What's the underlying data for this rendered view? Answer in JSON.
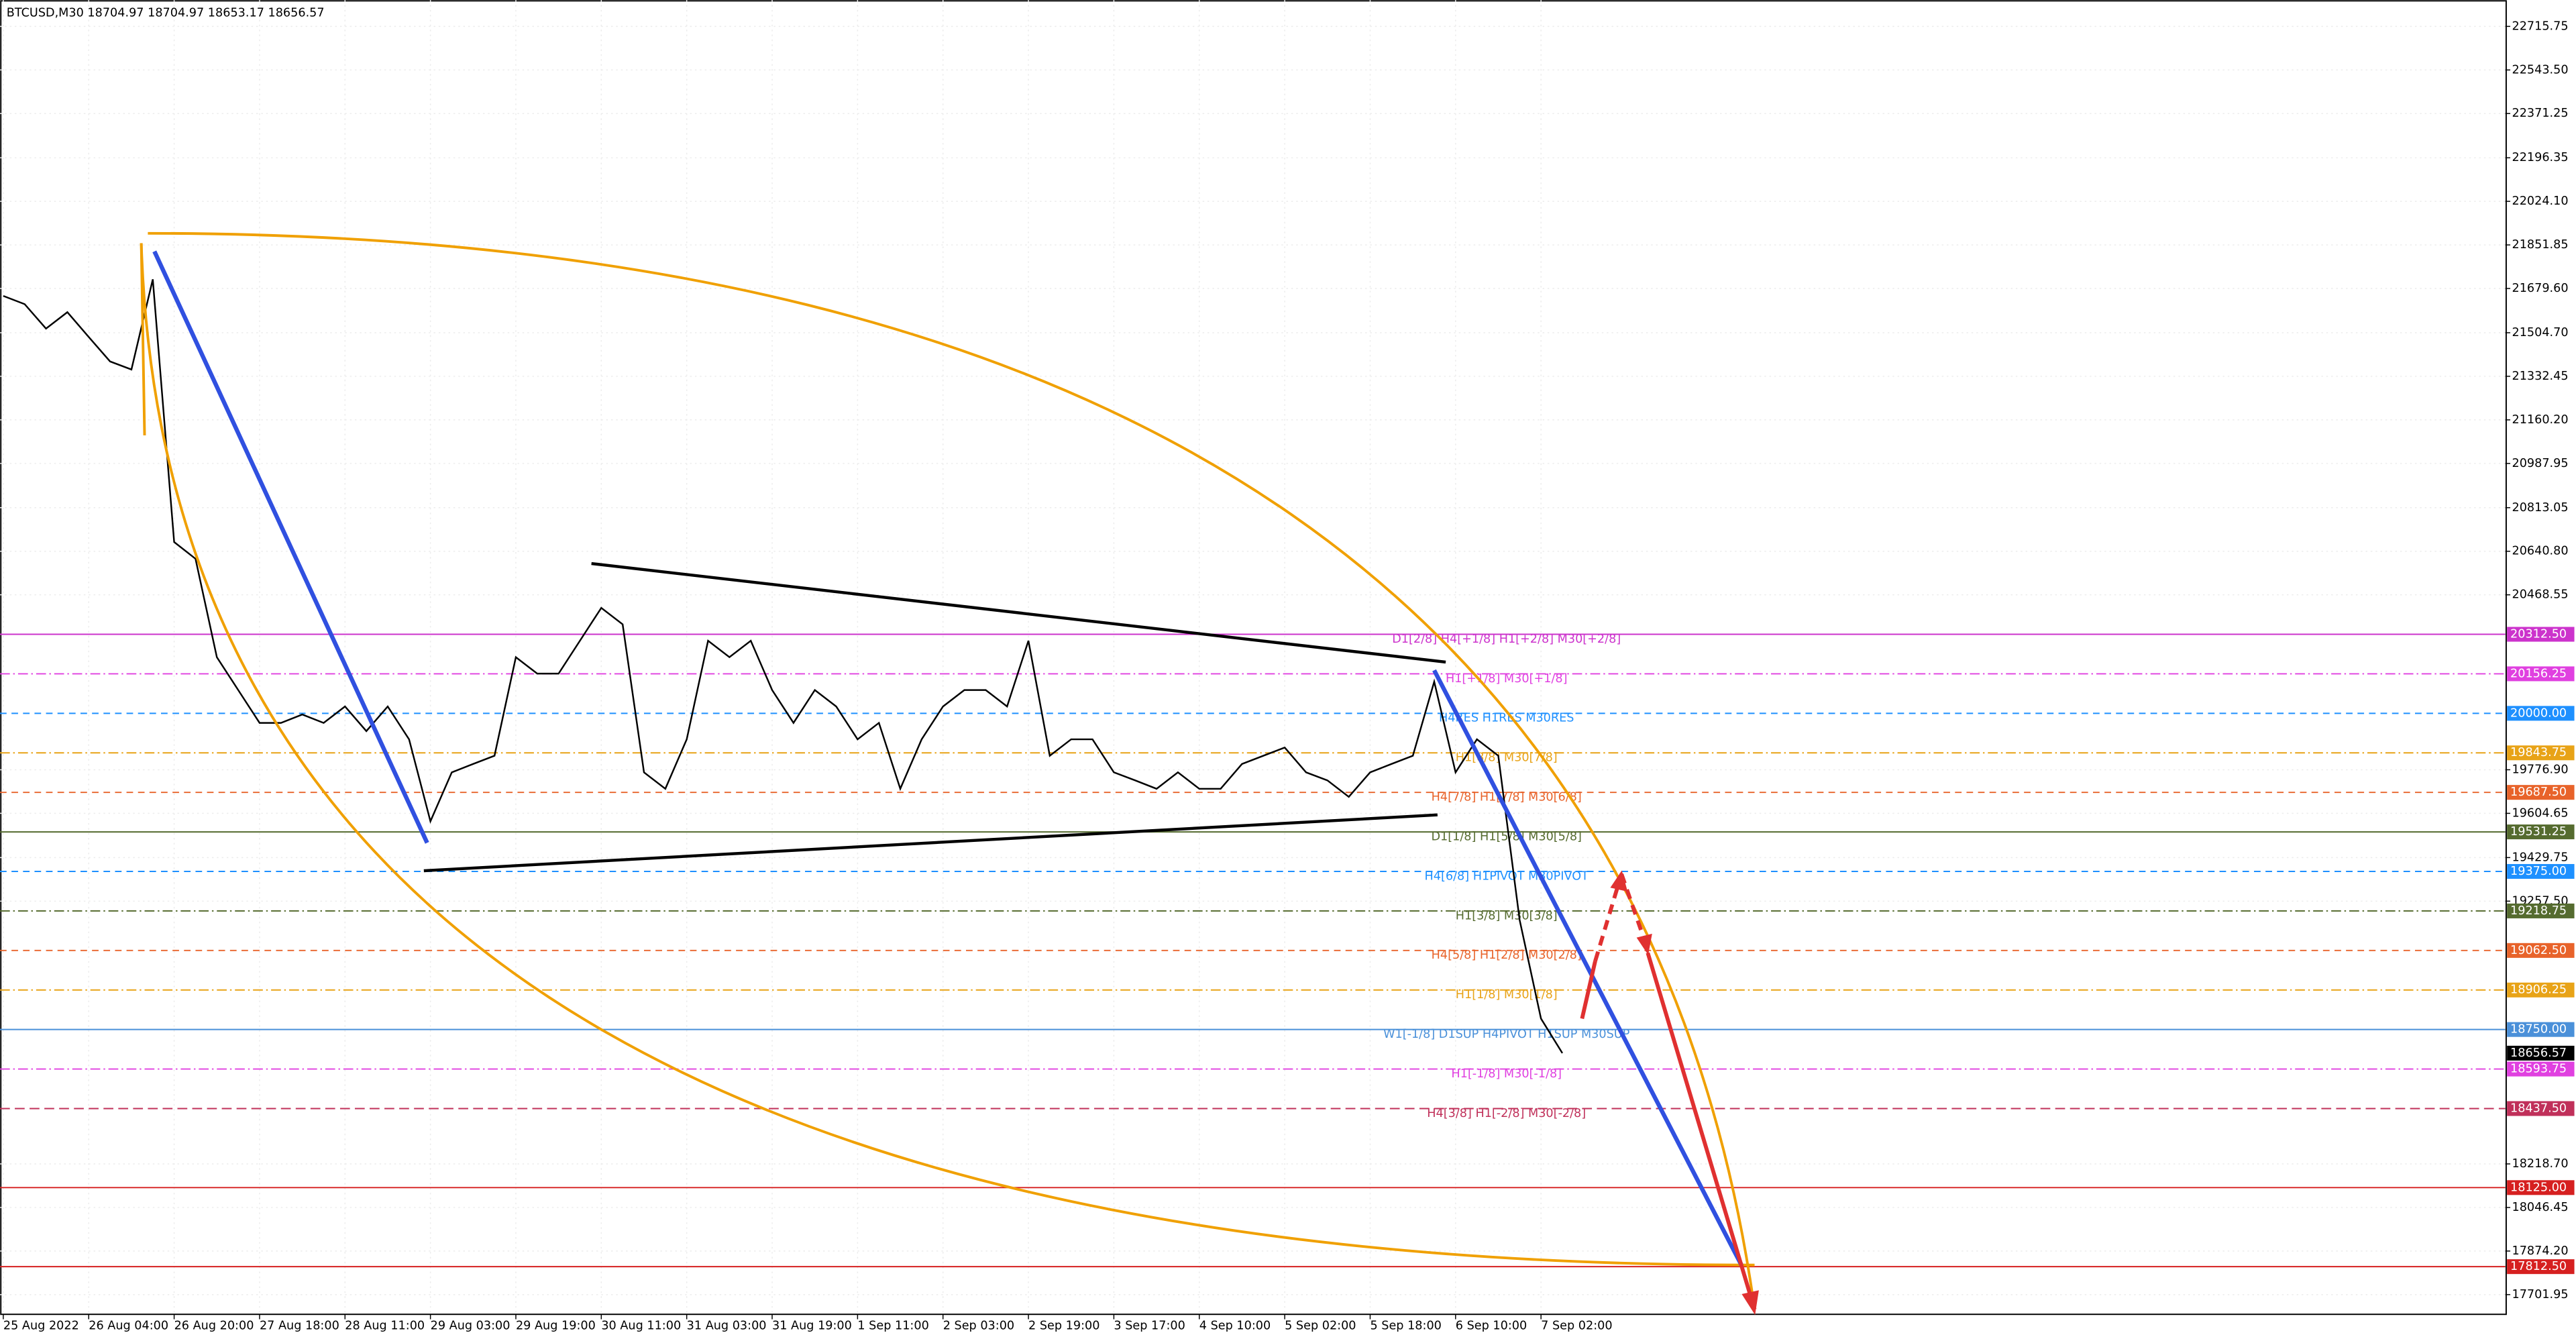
{
  "chart_data": {
    "type": "line",
    "title": "BTCUSD,M30  18704.97 18704.97 18653.17 18656.57",
    "categories": [
      "25 Aug 2022",
      null,
      null,
      null,
      "26 Aug 04:00",
      null,
      null,
      null,
      "26 Aug 20:00",
      null,
      null,
      null,
      "27 Aug 18:00",
      null,
      null,
      null,
      "28 Aug 11:00",
      null,
      null,
      null,
      "29 Aug 03:00",
      null,
      null,
      null,
      "29 Aug 19:00",
      null,
      null,
      null,
      "30 Aug 11:00",
      null,
      null,
      null,
      "31 Aug 03:00",
      null,
      null,
      null,
      "31 Aug 19:00",
      null,
      null,
      null,
      "1 Sep 11:00",
      null,
      null,
      null,
      "2 Sep 03:00",
      null,
      null,
      null,
      "2 Sep 19:00",
      null,
      null,
      null,
      "3 Sep 17:00",
      null,
      null,
      null,
      "4 Sep 10:00",
      null,
      null,
      null,
      "5 Sep 02:00",
      null,
      null,
      null,
      "5 Sep 18:00",
      null,
      null,
      null,
      "6 Sep 10:00",
      null,
      null,
      null,
      "7 Sep 02:00",
      null
    ],
    "series": [
      {
        "name": "BTCUSD",
        "color": "#000000",
        "values": [
          21650,
          21618,
          21521,
          21586,
          21488,
          21391,
          21359,
          21716,
          20677,
          20611,
          20222,
          20092,
          19962,
          19962,
          19995,
          19962,
          20027,
          19930,
          20027,
          19897,
          19573,
          19767,
          19800,
          19832,
          20222,
          20157,
          20157,
          20287,
          20417,
          20352,
          19767,
          19702,
          19897,
          20287,
          20222,
          20287,
          20092,
          19962,
          20092,
          20027,
          19897,
          19962,
          19702,
          19897,
          20027,
          20092,
          20092,
          20027,
          20287,
          19832,
          19897,
          19897,
          19767,
          19735,
          19702,
          19767,
          19702,
          19702,
          19800,
          19832,
          19865,
          19767,
          19735,
          19670,
          19767,
          19800,
          19832,
          20125,
          19767,
          19897,
          19832,
          19183,
          18793,
          18656.57
        ]
      }
    ],
    "ylim": [
      17624,
      22820
    ],
    "yticks": [
      {
        "value": 22715.75,
        "label": "22715.75"
      },
      {
        "value": 22543.5,
        "label": "22543.50"
      },
      {
        "value": 22371.25,
        "label": "22371.25"
      },
      {
        "value": 22196.35,
        "label": "22196.35"
      },
      {
        "value": 22024.1,
        "label": "22024.10"
      },
      {
        "value": 21851.85,
        "label": "21851.85"
      },
      {
        "value": 21679.6,
        "label": "21679.60"
      },
      {
        "value": 21504.7,
        "label": "21504.70"
      },
      {
        "value": 21332.45,
        "label": "21332.45"
      },
      {
        "value": 21160.2,
        "label": "21160.20"
      },
      {
        "value": 20987.95,
        "label": "20987.95"
      },
      {
        "value": 20813.05,
        "label": "20813.05"
      },
      {
        "value": 20640.8,
        "label": "20640.80"
      },
      {
        "value": 20468.55,
        "label": "20468.55"
      },
      {
        "value": 19776.9,
        "label": "19776.90"
      },
      {
        "value": 19604.65,
        "label": "19604.65"
      },
      {
        "value": 19429.75,
        "label": "19429.75"
      },
      {
        "value": 19257.5,
        "label": "19257.50"
      },
      {
        "value": 18218.7,
        "label": "18218.70"
      },
      {
        "value": 18046.45,
        "label": "18046.45"
      },
      {
        "value": 17874.2,
        "label": "17874.20"
      },
      {
        "value": 17701.95,
        "label": "17701.95"
      }
    ],
    "grid": true,
    "current": {
      "value": 18656.57,
      "label": "18656.57",
      "color": "#000000"
    },
    "levels": [
      {
        "value": 20312.5,
        "label": "20312.50",
        "color": "#cc33cc",
        "text": "D1[2/8] H4[+1/8] H1[+2/8] M30[+2/8]"
      },
      {
        "value": 20156.25,
        "label": "20156.25",
        "color": "#e040e0",
        "text": "H1[+1/8] M30[+1/8]"
      },
      {
        "value": 20000,
        "label": "20000.00",
        "color": "#1e90ff",
        "text": "H4RES H1RES M30RES"
      },
      {
        "value": 19843.75,
        "label": "19843.75",
        "color": "#e8a317",
        "text": "H1[8/8] M30[7/8]"
      },
      {
        "value": 19687.5,
        "label": "19687.50",
        "color": "#e8632a",
        "text": "H4[7/8] H1[7/8] M30[6/8]"
      },
      {
        "value": 19531.25,
        "label": "19531.25",
        "color": "#556b2f",
        "text": "D1[1/8] H1[5/8] M30[5/8]"
      },
      {
        "value": 19375,
        "label": "19375.00",
        "color": "#1e90ff",
        "text": "H4[6/8] H1PIVOT M30PIVOT"
      },
      {
        "value": 19218.75,
        "label": "19218.75",
        "color": "#556b2f",
        "text": "H1[3/8] M30[3/8]"
      },
      {
        "value": 19062.5,
        "label": "19062.50",
        "color": "#e8632a",
        "text": "H4[5/8] H1[2/8] M30[2/8]"
      },
      {
        "value": 18906.25,
        "label": "18906.25",
        "color": "#e8a317",
        "text": "H1[1/8] M30[1/8]"
      },
      {
        "value": 18750,
        "label": "18750.00",
        "color": "#4a90d9",
        "text": "W1[-1/8] D1SUP H4PIVOT H1SUP M30SUP"
      },
      {
        "value": 18593.75,
        "label": "18593.75",
        "color": "#e040e0",
        "text": "H1[-1/8] M30[-1/8]"
      },
      {
        "value": 18437.5,
        "label": "18437.50",
        "color": "#c0305a",
        "text": "H4[3/8] H1[-2/8] M30[-2/8]"
      },
      {
        "value": 18125,
        "label": "18125.00",
        "color": "#d62020"
      },
      {
        "value": 17812.5,
        "label": "17812.50",
        "color": "#d62020"
      }
    ]
  }
}
